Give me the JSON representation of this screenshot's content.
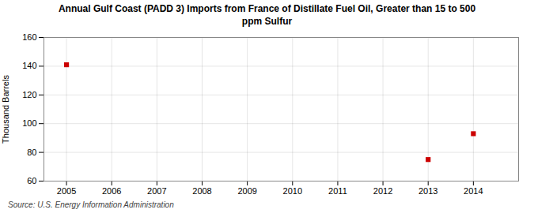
{
  "chart_data": {
    "type": "scatter",
    "title": "Annual Gulf Coast (PADD 3) Imports from France of Distillate Fuel Oil, Greater than 15 to 500\nppm Sulfur",
    "ylabel": "Thousand Barrels",
    "source": "Source: U.S. Energy Information Administration",
    "x": [
      2005,
      2013,
      2014
    ],
    "values": [
      141,
      75,
      93
    ],
    "color": "#cc0000",
    "marker": "square",
    "xlim": [
      2004.5,
      2015.0
    ],
    "ylim": [
      60,
      160
    ],
    "xticks": [
      2005,
      2006,
      2007,
      2008,
      2009,
      2010,
      2011,
      2012,
      2013,
      2014
    ],
    "yticks": [
      60,
      80,
      100,
      120,
      140,
      160
    ],
    "grid": true
  }
}
